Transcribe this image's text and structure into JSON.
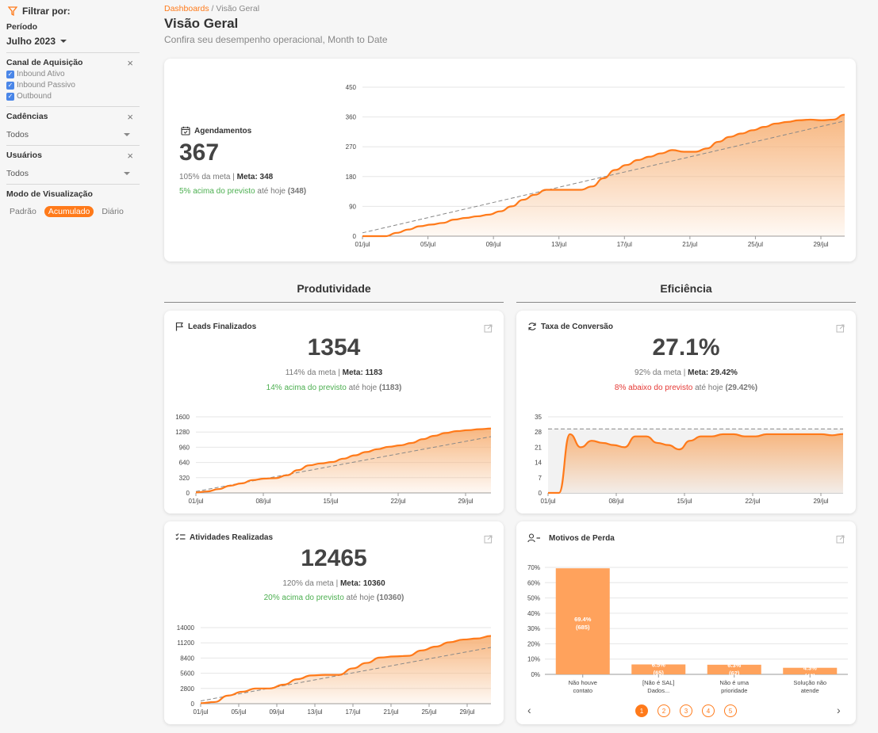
{
  "sidebar": {
    "filter_title": "Filtrar por:",
    "period_label": "Período",
    "period_value": "Julho 2023",
    "channel_label": "Canal de Aquisição",
    "channels": [
      "Inbound Ativo",
      "Inbound Passivo",
      "Outbound"
    ],
    "cadences_label": "Cadências",
    "cadences_value": "Todos",
    "users_label": "Usuários",
    "users_value": "Todos",
    "mode_label": "Modo de Visualização",
    "modes": [
      "Padrão",
      "Acumulado",
      "Diário"
    ],
    "mode_selected": "Acumulado"
  },
  "header": {
    "breadcrumb_link": "Dashboards",
    "breadcrumb_sep": " / ",
    "breadcrumb_current": "Visão Geral",
    "title": "Visão Geral",
    "subtitle": "Confira seu desempenho operacional, Month to Date"
  },
  "agendamentos": {
    "title": "Agendamentos",
    "value": "367",
    "meta_pct": "105%",
    "meta_text": " da meta | ",
    "meta_label": "Meta: 348",
    "prev_highlight": "5% acima do previsto",
    "prev_rest": " até hoje ",
    "prev_value": "(348)"
  },
  "sections": {
    "left": "Produtividade",
    "right": "Eficiência"
  },
  "leads": {
    "title": "Leads Finalizados",
    "value": "1354",
    "meta_pct": "114%",
    "meta_text": " da meta | ",
    "meta_label": "Meta: 1183",
    "prev_highlight": "14% acima do previsto",
    "prev_rest": " até hoje ",
    "prev_value": "(1183)"
  },
  "conversao": {
    "title": "Taxa de Conversão",
    "value": "27.1%",
    "meta_pct": "92%",
    "meta_text": " da meta | ",
    "meta_label": "Meta: 29.42%",
    "prev_highlight": "8% abaixo do previsto",
    "prev_rest": " até hoje ",
    "prev_value": "(29.42%)"
  },
  "atividades": {
    "title": "Atividades Realizadas",
    "value": "12465",
    "meta_pct": "120%",
    "meta_text": " da meta | ",
    "meta_label": "Meta: 10360",
    "prev_highlight": "20% acima do previsto",
    "prev_rest": " até hoje ",
    "prev_value": "(10360)"
  },
  "perda": {
    "title": "Motivos de Perda",
    "pages": [
      "1",
      "2",
      "3",
      "4",
      "5"
    ],
    "active_page": "1"
  },
  "colors": {
    "accent": "#ff7a1a",
    "fill": "#f7b37a",
    "bar": "#ffa25c",
    "green": "#4caf50",
    "red": "#e53935"
  },
  "chart_data": [
    {
      "id": "agendamentos",
      "type": "area",
      "title": "",
      "ylim": [
        0,
        450
      ],
      "yticks": [
        0,
        90,
        180,
        270,
        360,
        450
      ],
      "x_ticks": [
        "01/jul",
        "05/jul",
        "09/jul",
        "13/jul",
        "17/jul",
        "21/jul",
        "25/jul",
        "29/jul"
      ],
      "series": [
        {
          "name": "",
          "values": [
            0,
            0,
            0,
            10,
            20,
            30,
            35,
            40,
            50,
            55,
            60,
            65,
            75,
            90,
            110,
            125,
            140,
            140,
            140,
            140,
            150,
            175,
            200,
            215,
            230,
            240,
            250,
            260,
            255,
            255,
            265,
            285,
            300,
            310,
            320,
            330,
            340,
            345,
            350,
            352,
            350,
            352,
            367
          ]
        },
        {
          "name": "",
          "dashed": true,
          "values_linear": [
            10,
            348
          ]
        }
      ],
      "x_count": 31
    },
    {
      "id": "leads",
      "type": "area",
      "ylim": [
        0,
        1600
      ],
      "yticks": [
        0,
        320,
        640,
        960,
        1280,
        1600
      ],
      "x_ticks": [
        "01/jul",
        "08/jul",
        "15/jul",
        "22/jul",
        "29/jul"
      ],
      "series": [
        {
          "name": "",
          "values": [
            10,
            30,
            80,
            150,
            200,
            270,
            300,
            310,
            370,
            480,
            580,
            620,
            650,
            720,
            790,
            860,
            920,
            970,
            1000,
            1050,
            1130,
            1200,
            1260,
            1300,
            1320,
            1340,
            1354
          ]
        },
        {
          "name": "",
          "dashed": true,
          "values_linear": [
            30,
            1183
          ]
        }
      ]
    },
    {
      "id": "conversao",
      "type": "area",
      "ylim": [
        0,
        35
      ],
      "yticks": [
        0,
        7,
        14,
        21,
        28,
        35
      ],
      "x_ticks": [
        "01/jul",
        "08/jul",
        "15/jul",
        "22/jul",
        "29/jul"
      ],
      "target": 29.42,
      "series": [
        {
          "name": "",
          "values": [
            0,
            0,
            27,
            21,
            24,
            23,
            22,
            21,
            26,
            26,
            23,
            22,
            20,
            24,
            26,
            26,
            27,
            27,
            26,
            26,
            27,
            27,
            27,
            27,
            27,
            27,
            26.5,
            27.1
          ]
        }
      ]
    },
    {
      "id": "atividades",
      "type": "area",
      "ylim": [
        0,
        14000
      ],
      "yticks": [
        0,
        2800,
        5600,
        8400,
        11200,
        14000
      ],
      "x_ticks": [
        "01/jul",
        "05/jul",
        "09/jul",
        "13/jul",
        "17/jul",
        "21/jul",
        "25/jul",
        "29/jul"
      ],
      "series": [
        {
          "name": "",
          "values": [
            100,
            300,
            1500,
            2200,
            2800,
            2800,
            3500,
            4500,
            5200,
            5300,
            5300,
            6500,
            7500,
            8500,
            8700,
            8800,
            9800,
            10500,
            11300,
            11800,
            12000,
            12465
          ]
        },
        {
          "name": "",
          "dashed": true,
          "values_linear": [
            500,
            10360
          ]
        }
      ]
    },
    {
      "id": "perda",
      "type": "bar",
      "ylim": [
        0,
        70
      ],
      "yticks": [
        "0%",
        "10%",
        "20%",
        "30%",
        "40%",
        "50%",
        "60%",
        "70%"
      ],
      "categories": [
        [
          "Não houve",
          "contato"
        ],
        [
          "[Não é SAL]",
          "Dados..."
        ],
        [
          "Não é uma",
          "prioridade"
        ],
        [
          "Solução não",
          "atende"
        ]
      ],
      "values": [
        69.4,
        6.5,
        6.3,
        4.3
      ],
      "labels": [
        [
          "69.4%",
          "(685)"
        ],
        [
          "6.5%",
          "(65)"
        ],
        [
          "6.3%",
          "(62)"
        ],
        [
          "4.3%",
          "(43)"
        ]
      ]
    }
  ]
}
